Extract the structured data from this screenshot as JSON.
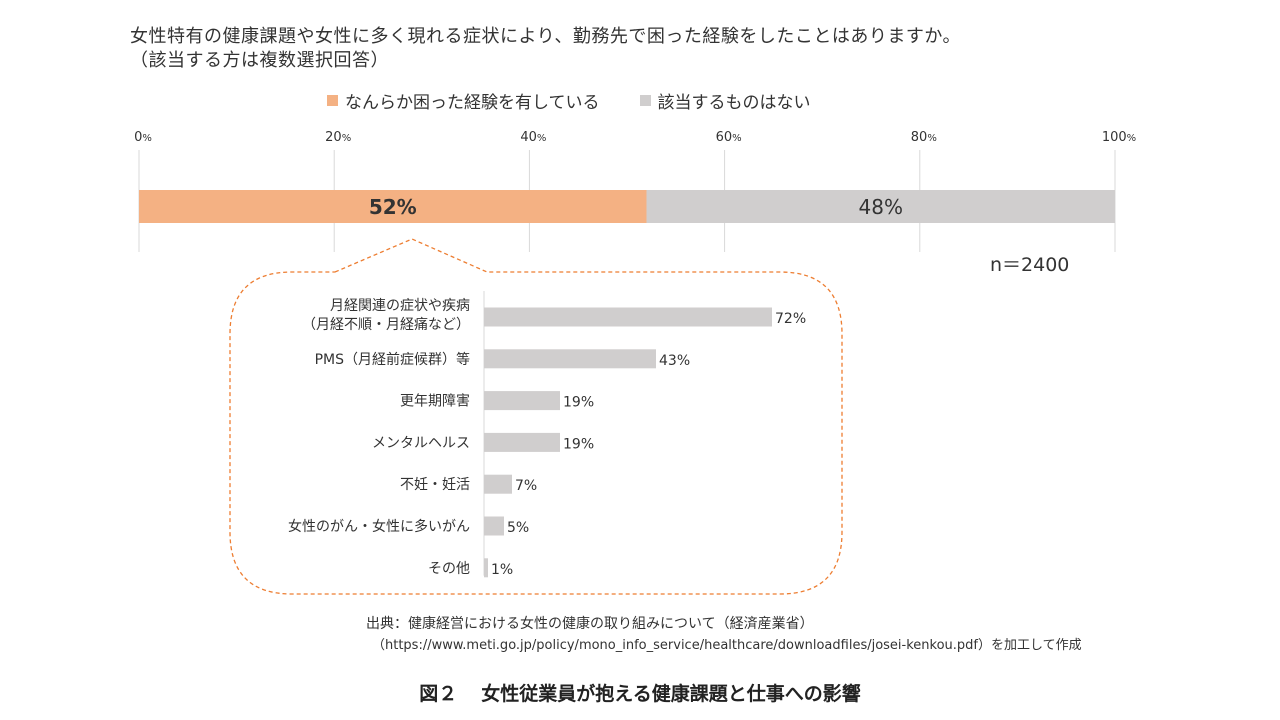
{
  "question_line1": "女性特有の健康課題や女性に多く現れる症状により、勤務先で困った経験をしたことはありますか。",
  "question_line2": "（該当する方は複数選択回答）",
  "legend": {
    "items": [
      {
        "label": "なんらか困った経験を有している",
        "color": "#F4B183"
      },
      {
        "label": "該当するものはない",
        "color": "#D0CECE"
      }
    ]
  },
  "colors": {
    "accent": "#F4B183",
    "gray": "#D0CECE",
    "callout": "#ED7D31",
    "axis": "#D9D9D9"
  },
  "sample_size": "n＝2400",
  "source": {
    "line1": "出典：健康経営における女性の健康の取り組みについて（経済産業省）",
    "line2": "（https://www.meti.go.jp/policy/mono_info_service/healthcare/downloadfiles/josei-kenkou.pdf）を加工して作成"
  },
  "figure": {
    "number": "図２",
    "caption": "女性従業員が抱える健康課題と仕事への影響"
  },
  "chart_data": [
    {
      "type": "bar",
      "orientation": "horizontal-stacked",
      "xlim": [
        0,
        100
      ],
      "ticks": [
        {
          "value": "0",
          "unit": "%"
        },
        {
          "value": "20",
          "unit": "%"
        },
        {
          "value": "40",
          "unit": "%"
        },
        {
          "value": "60",
          "unit": "%"
        },
        {
          "value": "80",
          "unit": "%"
        },
        {
          "value": "100",
          "unit": "%"
        }
      ],
      "series": [
        {
          "name": "なんらか困った経験を有している",
          "values": [
            52
          ],
          "label": "52%"
        },
        {
          "name": "該当するものはない",
          "values": [
            48
          ],
          "label": "48%"
        }
      ],
      "grid": true,
      "legend_position": "top"
    },
    {
      "type": "bar",
      "orientation": "horizontal",
      "categories": [
        [
          "月経関連の症状や疾病",
          "（月経不順・月経痛など）"
        ],
        [
          "PMS（月経前症候群）等"
        ],
        [
          "更年期障害"
        ],
        [
          "メンタルヘルス"
        ],
        [
          "不妊・妊活"
        ],
        [
          "女性のがん・女性に多いがん"
        ],
        [
          "その他"
        ]
      ],
      "values": [
        72,
        43,
        19,
        19,
        7,
        5,
        1
      ],
      "labels": [
        "72%",
        "43%",
        "19%",
        "19%",
        "7%",
        "5%",
        "1%"
      ]
    }
  ]
}
